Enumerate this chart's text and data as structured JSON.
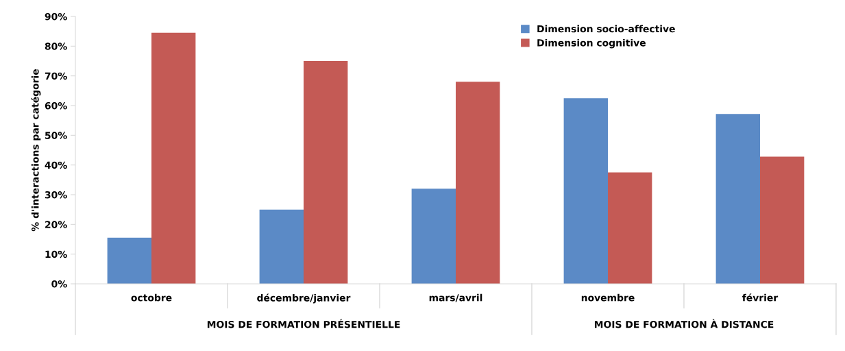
{
  "chart_data": {
    "type": "bar",
    "ylabel": "% d'interactions par catégorie",
    "categories": [
      "octobre",
      "décembre/janvier",
      "mars/avril",
      "novembre",
      "février"
    ],
    "series": [
      {
        "name": "Dimension socio-affective",
        "color": "#5b8ac6",
        "values": [
          15.5,
          25,
          32,
          62.5,
          57.2
        ]
      },
      {
        "name": "Dimension cognitive",
        "color": "#c45a55",
        "values": [
          84.5,
          75,
          68,
          37.5,
          42.8
        ]
      }
    ],
    "ylim": [
      0,
      90
    ],
    "yticks": [
      {
        "value": 0,
        "label": "0%"
      },
      {
        "value": 10,
        "label": "10%"
      },
      {
        "value": 20,
        "label": "20%"
      },
      {
        "value": 30,
        "label": "30%"
      },
      {
        "value": 40,
        "label": "40%"
      },
      {
        "value": 50,
        "label": "50%"
      },
      {
        "value": 60,
        "label": "60%"
      },
      {
        "value": 70,
        "label": "70%"
      },
      {
        "value": 80,
        "label": "80%"
      },
      {
        "value": 90,
        "label": "90%"
      }
    ],
    "annotations": [
      "MOIS DE FORMATION PRÉSENTIELLE",
      "MOIS DE FORMATION À DISTANCE"
    ],
    "grid": false,
    "legend": "top right"
  }
}
